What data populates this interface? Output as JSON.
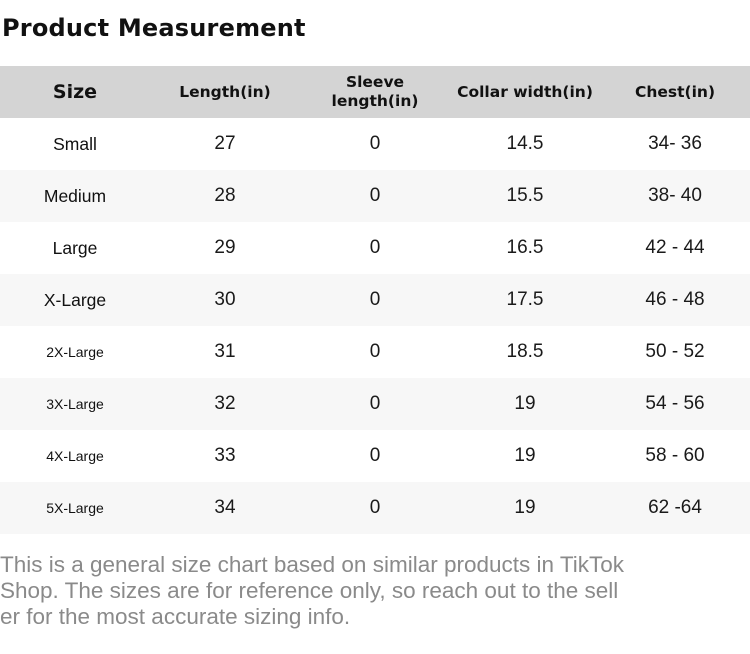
{
  "title": "Product Measurement",
  "table": {
    "columns": [
      {
        "label": "Size"
      },
      {
        "label": "Length(in)"
      },
      {
        "label": "Sleeve length(in)"
      },
      {
        "label": "Collar width(in)"
      },
      {
        "label": "Chest(in)"
      }
    ],
    "rows": [
      {
        "size": "Small",
        "length": "27",
        "sleeve": "0",
        "collar": "14.5",
        "chest": "34- 36"
      },
      {
        "size": "Medium",
        "length": "28",
        "sleeve": "0",
        "collar": "15.5",
        "chest": "38- 40"
      },
      {
        "size": "Large",
        "length": "29",
        "sleeve": "0",
        "collar": "16.5",
        "chest": "42 - 44"
      },
      {
        "size": "X-Large",
        "length": "30",
        "sleeve": "0",
        "collar": "17.5",
        "chest": "46 - 48"
      },
      {
        "size": "2X-Large",
        "length": "31",
        "sleeve": "0",
        "collar": "18.5",
        "chest": "50 - 52"
      },
      {
        "size": "3X-Large",
        "length": "32",
        "sleeve": "0",
        "collar": "19",
        "chest": "54 - 56"
      },
      {
        "size": "4X-Large",
        "length": "33",
        "sleeve": "0",
        "collar": "19",
        "chest": "58 - 60"
      },
      {
        "size": "5X-Large",
        "length": "34",
        "sleeve": "0",
        "collar": "19",
        "chest": "62 -64"
      }
    ]
  },
  "footer": {
    "text": "This is a general size chart based on similar products in TikTok Shop. The sizes are for reference only, so reach out to the seller for the most accurate sizing info.",
    "lines": [
      "This is a general size chart based on similar products in TikTok",
      "Shop. The sizes are for reference only, so reach out to the sell",
      "er for the most accurate sizing info."
    ]
  },
  "colors": {
    "header_bg": "#d4d4d4",
    "row_alt_bg": "#f7f7f7",
    "text": "#111111",
    "footer_text": "#8a8a8a"
  }
}
